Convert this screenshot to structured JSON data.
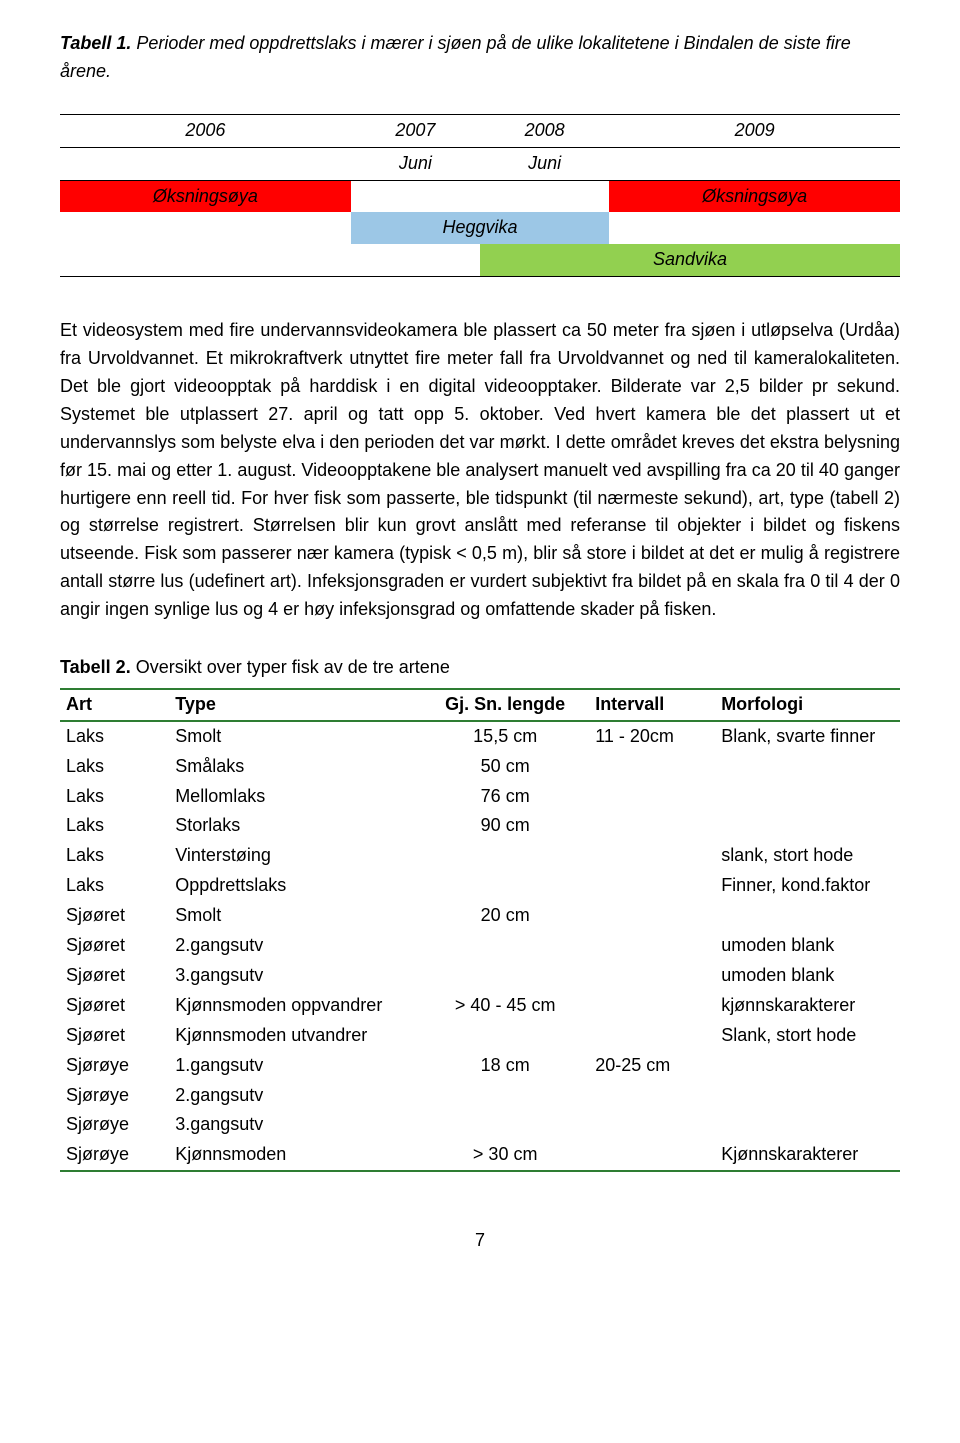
{
  "table1_caption": {
    "label": "Tabell 1.",
    "text": " Perioder med oppdrettslaks i mærer i sjøen på de ulike lokalitetene i Bindalen de siste fire årene."
  },
  "table1": {
    "years": [
      "2006",
      "2007",
      "2008",
      "2009"
    ],
    "subhead": [
      "",
      "Juni",
      "Juni",
      ""
    ],
    "rows": [
      {
        "cells": [
          "Øksningsøya",
          "",
          "",
          "Øksningsøya"
        ],
        "colors": [
          "#ff0000",
          "",
          "",
          "#ff0000"
        ]
      },
      {
        "cells": [
          "",
          "Heggvika",
          "",
          ""
        ],
        "colors": [
          "",
          "#9cc7e6",
          "",
          ""
        ],
        "span": [
          1,
          2,
          0,
          1
        ]
      },
      {
        "cells": [
          "",
          "",
          "Sandvika",
          ""
        ],
        "colors": [
          "",
          "",
          "#92d050",
          ""
        ],
        "span": [
          1,
          1,
          2,
          0
        ]
      }
    ]
  },
  "body": "Et videosystem med fire undervannsvideokamera ble plassert ca 50 meter fra sjøen i utløpselva (Urdåa) fra Urvoldvannet. Et mikrokraftverk utnyttet fire meter fall fra Urvoldvannet og ned til kameralokaliteten. Det ble gjort videoopptak på harddisk i en digital videoopptaker. Bilderate var 2,5 bilder pr sekund. Systemet ble utplassert 27. april og tatt opp 5. oktober. Ved hvert kamera ble det plassert ut et undervannslys som belyste elva i den perioden det var mørkt. I dette området kreves det ekstra belysning før 15. mai og etter 1. august. Videoopptakene ble analysert manuelt ved avspilling fra ca 20 til 40 ganger hurtigere enn reell tid. For hver fisk som passerte, ble tidspunkt (til nærmeste sekund), art, type (tabell 2) og størrelse registrert. Størrelsen blir kun grovt anslått med referanse til objekter i bildet og fiskens utseende. Fisk som passerer nær kamera (typisk < 0,5 m), blir så store i bildet at det er mulig å registrere antall større lus (udefinert art). Infeksjonsgraden er vurdert subjektivt fra bildet på en skala fra 0 til 4 der 0 angir ingen synlige lus og 4 er høy infeksjonsgrad og omfattende skader på fisken.",
  "table2_caption": {
    "label": "Tabell 2.",
    "text": " Oversikt over typer fisk av de tre artene"
  },
  "table2": {
    "columns": [
      "Art",
      "Type",
      "Gj. Sn. lengde",
      "Intervall",
      "Morfologi"
    ],
    "rows": [
      [
        "Laks",
        "Smolt",
        "15,5 cm",
        "11 - 20cm",
        "Blank, svarte finner"
      ],
      [
        "Laks",
        "Smålaks",
        "50 cm",
        "",
        ""
      ],
      [
        "Laks",
        "Mellomlaks",
        "76 cm",
        "",
        ""
      ],
      [
        "Laks",
        "Storlaks",
        "90 cm",
        "",
        ""
      ],
      [
        "Laks",
        "Vinterstøing",
        "",
        "",
        "slank, stort hode"
      ],
      [
        "Laks",
        "Oppdrettslaks",
        "",
        "",
        "Finner, kond.faktor"
      ],
      [
        "Sjøøret",
        "Smolt",
        "20 cm",
        "",
        ""
      ],
      [
        "Sjøøret",
        "2.gangsutv",
        "",
        "",
        "umoden blank"
      ],
      [
        "Sjøøret",
        "3.gangsutv",
        "",
        "",
        "umoden blank"
      ],
      [
        "Sjøøret",
        "Kjønnsmoden oppvandrer",
        "> 40 - 45 cm",
        "",
        "kjønnskarakterer"
      ],
      [
        "Sjøøret",
        "Kjønnsmoden utvandrer",
        "",
        "",
        "Slank, stort hode"
      ],
      [
        "Sjørøye",
        "1.gangsutv",
        "18 cm",
        "20-25 cm",
        ""
      ],
      [
        "Sjørøye",
        "2.gangsutv",
        "",
        "",
        ""
      ],
      [
        "Sjørøye",
        "3.gangsutv",
        "",
        "",
        ""
      ],
      [
        "Sjørøye",
        "Kjønnsmoden",
        "> 30 cm",
        "",
        "Kjønnskarakterer"
      ]
    ],
    "border_color": "#2e7d32"
  },
  "page_number": "7"
}
